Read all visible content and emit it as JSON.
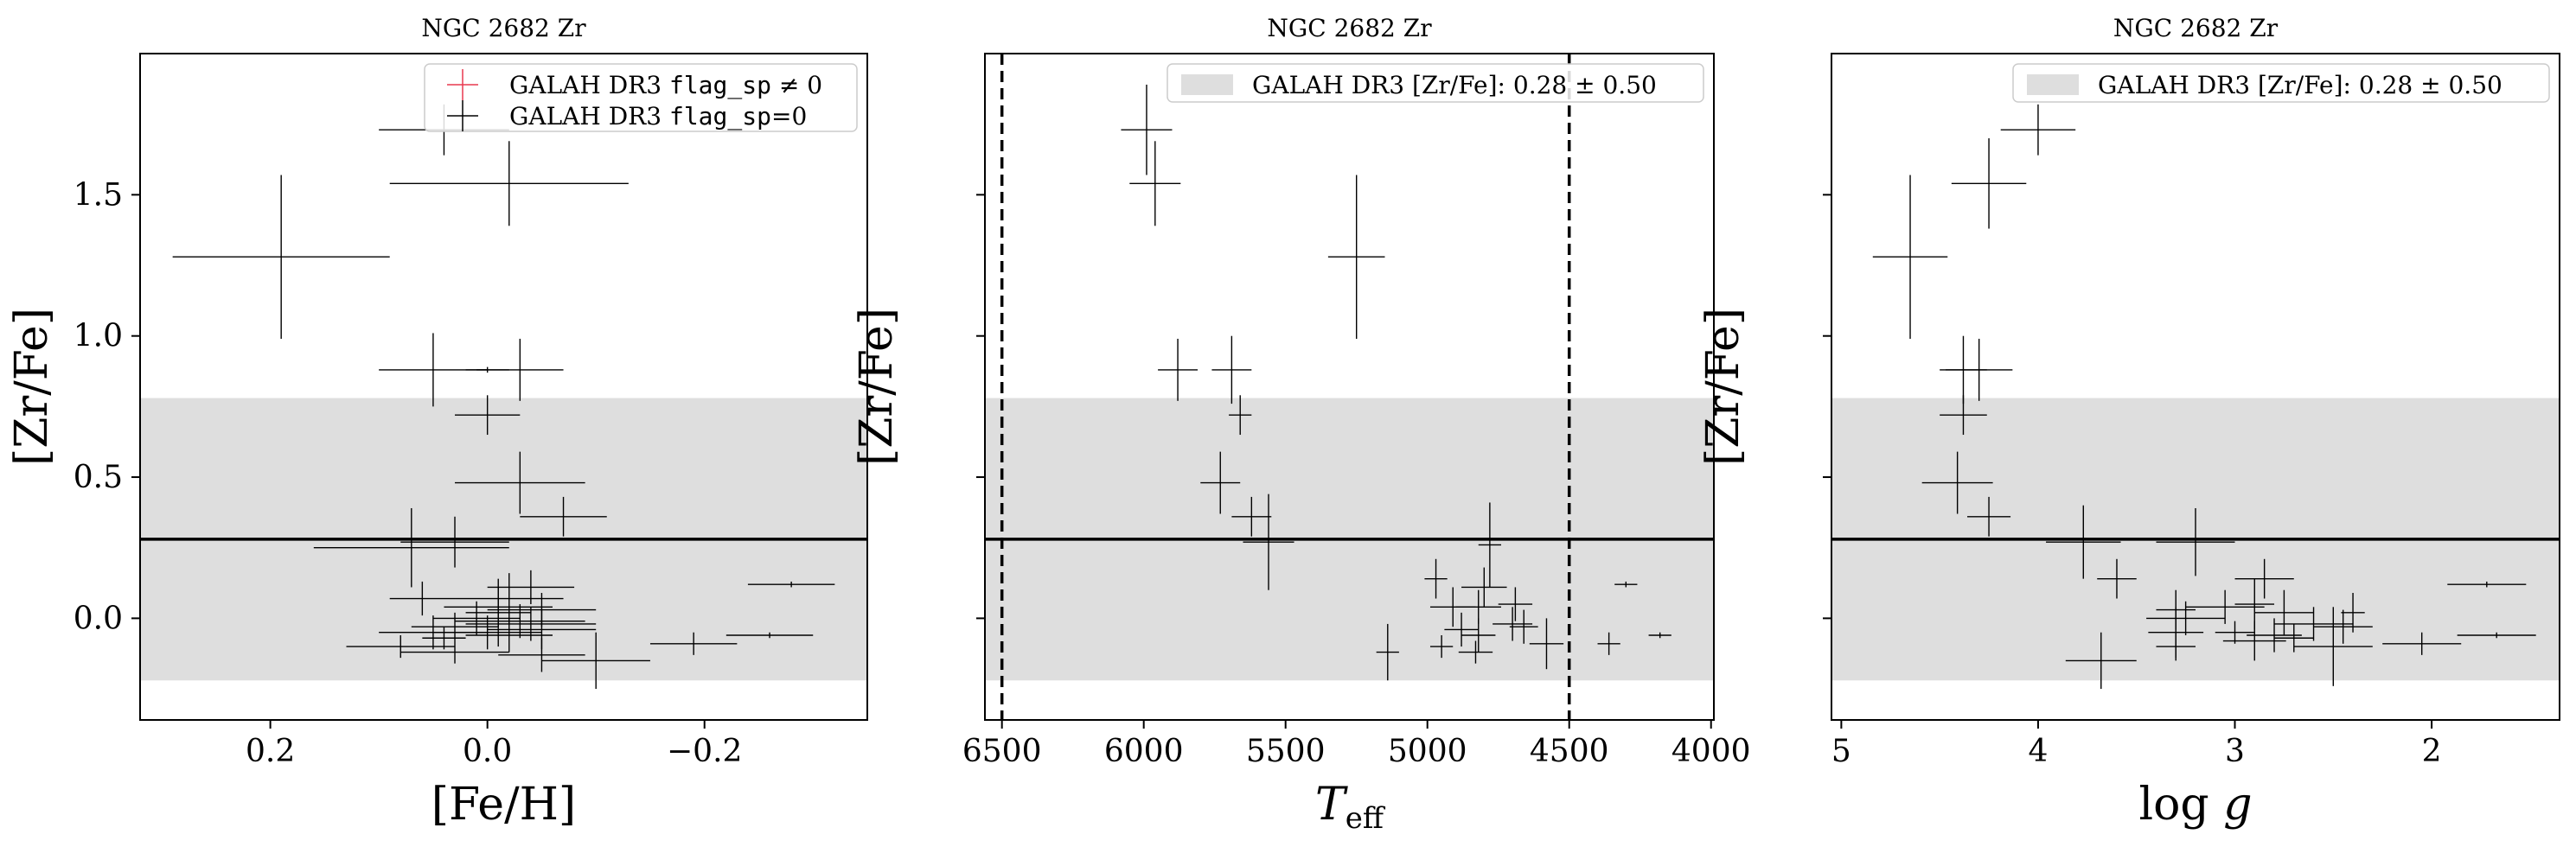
{
  "chart_data": [
    {
      "type": "scatter",
      "title": "NGC 2682 Zr",
      "xlabel": "[Fe/H]",
      "ylabel": "[Zr/Fe]",
      "xlim": [
        0.32,
        -0.35
      ],
      "ylim": [
        -0.36,
        2.0
      ],
      "x_reversed": true,
      "xticks": [
        0.2,
        0.0,
        -0.2
      ],
      "xtick_labels": [
        "0.2",
        "0.0",
        "−0.2"
      ],
      "yticks": [
        0.0,
        0.5,
        1.0,
        1.5
      ],
      "ytick_labels": [
        "0.0",
        "0.5",
        "1.0",
        "1.5"
      ],
      "reference_line": 0.28,
      "band": [
        -0.22,
        0.78
      ],
      "legend": {
        "position": "top-right",
        "entries": [
          {
            "pre": "GALAH DR3 ",
            "code": "flag_sp",
            "post": " ≠ 0",
            "color": "#e8384f"
          },
          {
            "pre": "GALAH DR3 ",
            "code": "flag_sp",
            "post": "=0",
            "color": "#000000"
          }
        ]
      },
      "series": [
        {
          "color": "#000000",
          "points": [
            [
              0.19,
              1.28,
              0.1,
              0.29
            ],
            [
              0.04,
              1.73,
              0.06,
              0.09
            ],
            [
              -0.02,
              1.54,
              0.11,
              0.15
            ],
            [
              0.05,
              0.88,
              0.05,
              0.13
            ],
            [
              0.0,
              0.88,
              0.02,
              0.01
            ],
            [
              -0.03,
              0.88,
              0.04,
              0.11
            ],
            [
              0.0,
              0.72,
              0.03,
              0.07
            ],
            [
              -0.03,
              0.48,
              0.06,
              0.11
            ],
            [
              -0.07,
              0.36,
              0.04,
              0.07
            ],
            [
              0.07,
              0.25,
              0.09,
              0.14
            ],
            [
              0.03,
              0.27,
              0.05,
              0.09
            ],
            [
              -0.28,
              0.12,
              0.04,
              0.01
            ],
            [
              0.06,
              0.07,
              0.03,
              0.06
            ],
            [
              -0.04,
              0.11,
              0.04,
              0.06
            ],
            [
              -0.02,
              0.07,
              0.05,
              0.09
            ],
            [
              -0.05,
              0.03,
              0.05,
              0.06
            ],
            [
              -0.01,
              0.04,
              0.05,
              0.07
            ],
            [
              0.01,
              0.0,
              0.04,
              0.06
            ],
            [
              -0.03,
              -0.01,
              0.06,
              0.06
            ],
            [
              0.03,
              -0.03,
              0.04,
              0.05
            ],
            [
              -0.04,
              -0.02,
              0.06,
              0.06
            ],
            [
              -0.05,
              -0.04,
              0.05,
              0.07
            ],
            [
              0.0,
              -0.05,
              0.05,
              0.06
            ],
            [
              -0.02,
              -0.06,
              0.04,
              0.06
            ],
            [
              0.05,
              -0.05,
              0.05,
              0.06
            ],
            [
              0.08,
              -0.1,
              0.05,
              0.04
            ],
            [
              0.03,
              -0.12,
              0.05,
              0.04
            ],
            [
              -0.05,
              -0.13,
              0.04,
              0.06
            ],
            [
              -0.1,
              -0.15,
              0.05,
              0.1
            ],
            [
              -0.19,
              -0.09,
              0.04,
              0.04
            ],
            [
              -0.26,
              -0.06,
              0.04,
              0.01
            ],
            [
              0.04,
              -0.07,
              0.02,
              0.04
            ],
            [
              -0.01,
              0.02,
              0.03,
              0.12
            ]
          ]
        }
      ]
    },
    {
      "type": "scatter",
      "title": "NGC 2682 Zr",
      "xlabel": "T_eff",
      "ylabel": "[Zr/Fe]",
      "xlim": [
        6560,
        3990
      ],
      "ylim": [
        -0.36,
        2.0
      ],
      "x_reversed": true,
      "xticks": [
        6500,
        6000,
        5500,
        5000,
        4500,
        4000
      ],
      "xtick_labels": [
        "6500",
        "6000",
        "5500",
        "5000",
        "4500",
        "4000"
      ],
      "yticks": [
        0.0,
        0.5,
        1.0,
        1.5
      ],
      "reference_line": 0.28,
      "band": [
        -0.22,
        0.78
      ],
      "vlines": [
        6500,
        4500
      ],
      "legend": {
        "position": "top-right",
        "entries": [
          {
            "pre": "GALAH DR3 [Zr/Fe]: ",
            "value": "0.28 ± 0.50"
          }
        ]
      },
      "series": [
        {
          "color": "#000000",
          "points": [
            [
              5990,
              1.73,
              90,
              0.16
            ],
            [
              5960,
              1.54,
              90,
              0.15
            ],
            [
              5250,
              1.28,
              100,
              0.29
            ],
            [
              5880,
              0.88,
              70,
              0.11
            ],
            [
              5690,
              0.88,
              70,
              0.12
            ],
            [
              5660,
              0.72,
              40,
              0.07
            ],
            [
              5730,
              0.48,
              70,
              0.11
            ],
            [
              5620,
              0.36,
              70,
              0.07
            ],
            [
              5560,
              0.27,
              90,
              0.17
            ],
            [
              4780,
              0.26,
              40,
              0.15
            ],
            [
              4970,
              0.14,
              40,
              0.07
            ],
            [
              4800,
              0.11,
              80,
              0.07
            ],
            [
              4910,
              0.04,
              80,
              0.07
            ],
            [
              4820,
              0.04,
              80,
              0.06
            ],
            [
              4690,
              0.05,
              60,
              0.06
            ],
            [
              4700,
              -0.02,
              70,
              0.06
            ],
            [
              4660,
              -0.03,
              50,
              0.06
            ],
            [
              4880,
              -0.04,
              60,
              0.06
            ],
            [
              4820,
              -0.06,
              60,
              0.06
            ],
            [
              4300,
              0.12,
              40,
              0.01
            ],
            [
              4950,
              -0.1,
              40,
              0.04
            ],
            [
              4830,
              -0.12,
              60,
              0.04
            ],
            [
              5140,
              -0.12,
              40,
              0.1
            ],
            [
              4580,
              -0.09,
              60,
              0.09
            ],
            [
              4360,
              -0.09,
              40,
              0.04
            ],
            [
              4180,
              -0.06,
              40,
              0.01
            ]
          ]
        }
      ]
    },
    {
      "type": "scatter",
      "title": "NGC 2682 Zr",
      "xlabel": "log g",
      "ylabel": "[Zr/Fe]",
      "xlim": [
        5.05,
        1.35
      ],
      "ylim": [
        -0.36,
        2.0
      ],
      "x_reversed": true,
      "xticks": [
        5,
        4,
        3,
        2
      ],
      "xtick_labels": [
        "5",
        "4",
        "3",
        "2"
      ],
      "yticks": [
        0.0,
        0.5,
        1.0,
        1.5
      ],
      "reference_line": 0.28,
      "band": [
        -0.22,
        0.78
      ],
      "legend": {
        "position": "top-right",
        "entries": [
          {
            "pre": "GALAH DR3 [Zr/Fe]: ",
            "value": "0.28 ± 0.50"
          }
        ]
      },
      "series": [
        {
          "color": "#000000",
          "points": [
            [
              4.0,
              1.73,
              0.19,
              0.09
            ],
            [
              4.25,
              1.54,
              0.19,
              0.16
            ],
            [
              4.65,
              1.28,
              0.19,
              0.29
            ],
            [
              4.3,
              0.88,
              0.17,
              0.11
            ],
            [
              4.38,
              0.88,
              0.12,
              0.12
            ],
            [
              4.38,
              0.72,
              0.12,
              0.07
            ],
            [
              4.41,
              0.48,
              0.18,
              0.11
            ],
            [
              4.25,
              0.36,
              0.11,
              0.07
            ],
            [
              3.77,
              0.27,
              0.19,
              0.13
            ],
            [
              3.2,
              0.27,
              0.2,
              0.12
            ],
            [
              3.6,
              0.14,
              0.1,
              0.07
            ],
            [
              2.85,
              0.14,
              0.15,
              0.07
            ],
            [
              1.72,
              0.12,
              0.2,
              0.01
            ],
            [
              2.9,
              0.05,
              0.1,
              0.09
            ],
            [
              3.3,
              0.03,
              0.1,
              0.07
            ],
            [
              3.05,
              0.04,
              0.2,
              0.06
            ],
            [
              2.75,
              0.02,
              0.15,
              0.08
            ],
            [
              2.4,
              0.02,
              0.06,
              0.07
            ],
            [
              3.25,
              0.0,
              0.2,
              0.06
            ],
            [
              2.6,
              -0.02,
              0.2,
              0.06
            ],
            [
              2.45,
              -0.03,
              0.15,
              0.06
            ],
            [
              3.3,
              -0.05,
              0.14,
              0.09
            ],
            [
              2.8,
              -0.06,
              0.14,
              0.06
            ],
            [
              3.3,
              -0.1,
              0.1,
              0.05
            ],
            [
              2.9,
              -0.08,
              0.16,
              0.07
            ],
            [
              3.68,
              -0.15,
              0.18,
              0.1
            ],
            [
              2.5,
              -0.1,
              0.2,
              0.14
            ],
            [
              2.05,
              -0.09,
              0.2,
              0.04
            ],
            [
              1.67,
              -0.06,
              0.2,
              0.01
            ],
            [
              3.0,
              -0.05,
              0.1,
              0.04
            ],
            [
              2.7,
              -0.07,
              0.1,
              0.05
            ]
          ]
        }
      ]
    }
  ]
}
